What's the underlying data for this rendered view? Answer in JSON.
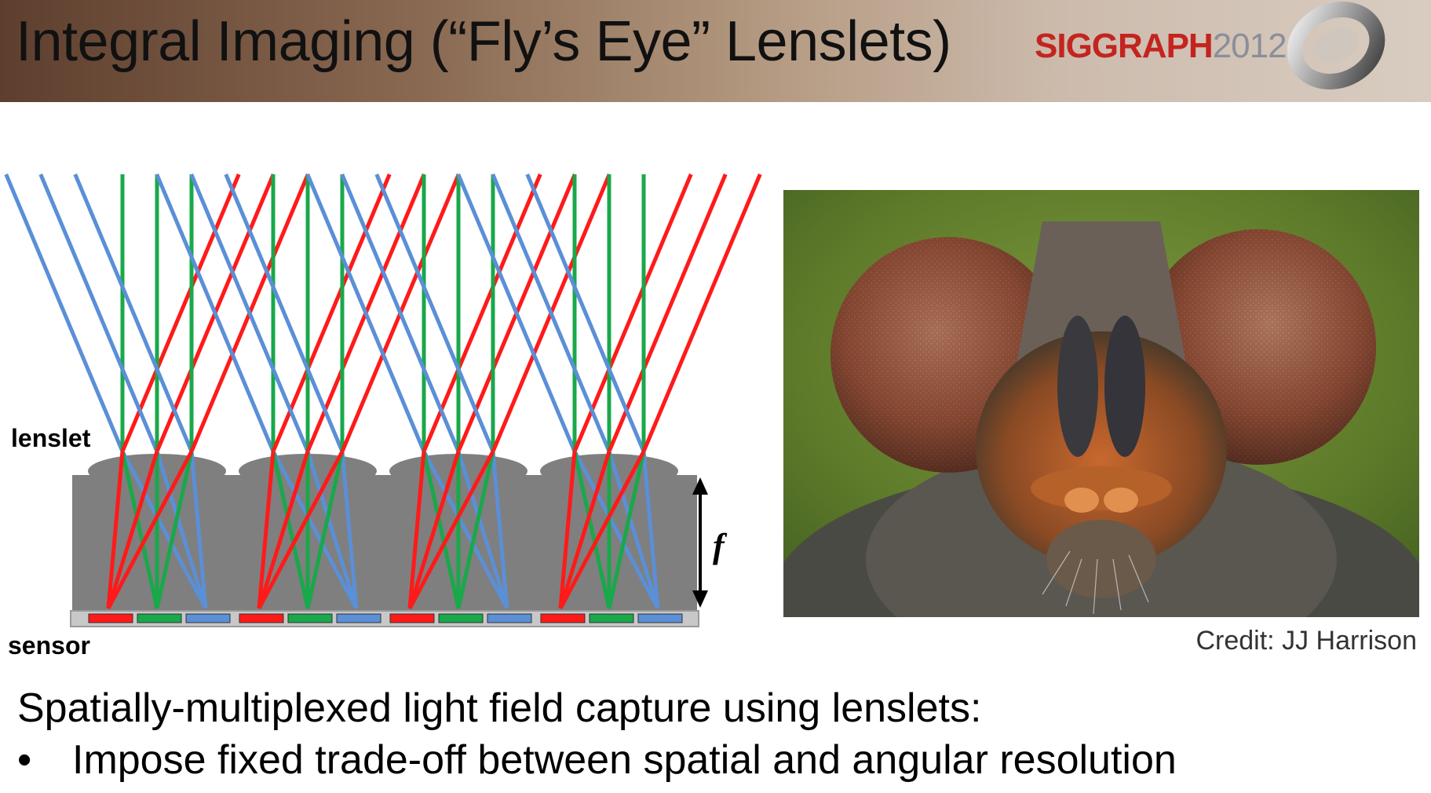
{
  "slide": {
    "title": "Integral Imaging (“Fly’s Eye” Lenslets)",
    "brand": "SIGGRAPH",
    "brand_year": "2012"
  },
  "diagram": {
    "label_lenslet": "lenslet",
    "label_sensor": "sensor",
    "label_focal": "f",
    "lenslet_count": 4,
    "ray_colors": {
      "red": "#ff1a1a",
      "green": "#19a84a",
      "blue": "#5b8fd6"
    },
    "body_color": "#7f7f7f"
  },
  "photo": {
    "credit": "Credit: JJ Harrison"
  },
  "text": {
    "caption": "Spatially-multiplexed light field capture using lenslets:",
    "bullet_symbol": "•",
    "bullet": "Impose fixed trade-off between spatial and angular resolution"
  }
}
